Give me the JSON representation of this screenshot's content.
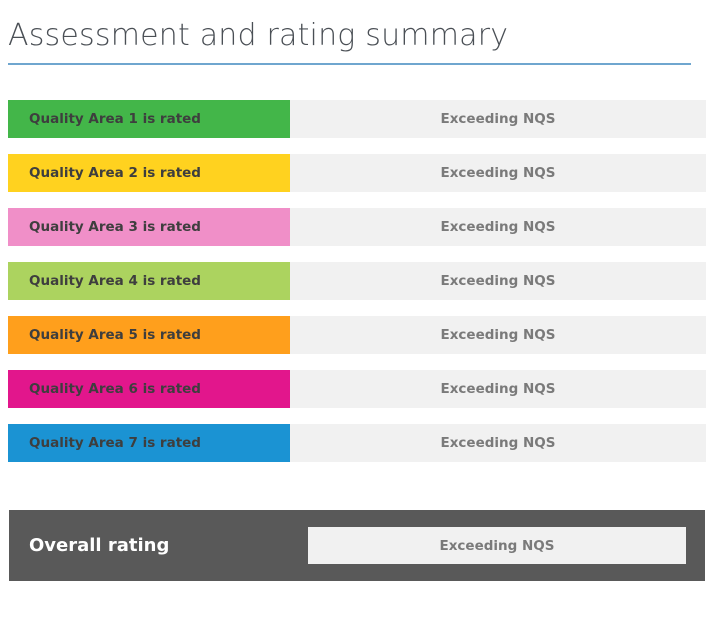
{
  "page_title": "Assessment and rating summary",
  "areas": [
    {
      "label": "Quality Area 1 is rated",
      "rating": "Exceeding NQS",
      "color": "#43b649"
    },
    {
      "label": "Quality Area 2 is rated",
      "rating": "Exceeding NQS",
      "color": "#ffd21f"
    },
    {
      "label": "Quality Area 3 is rated",
      "rating": "Exceeding NQS",
      "color": "#f08fc8"
    },
    {
      "label": "Quality Area 4 is rated",
      "rating": "Exceeding NQS",
      "color": "#acd35f"
    },
    {
      "label": "Quality Area 5 is rated",
      "rating": "Exceeding NQS",
      "color": "#ff9f1c"
    },
    {
      "label": "Quality Area 6 is rated",
      "rating": "Exceeding NQS",
      "color": "#e2168c"
    },
    {
      "label": "Quality Area 7 is rated",
      "rating": "Exceeding NQS",
      "color": "#1b93d3"
    }
  ],
  "overall": {
    "label": "Overall rating",
    "rating": "Exceeding NQS"
  }
}
